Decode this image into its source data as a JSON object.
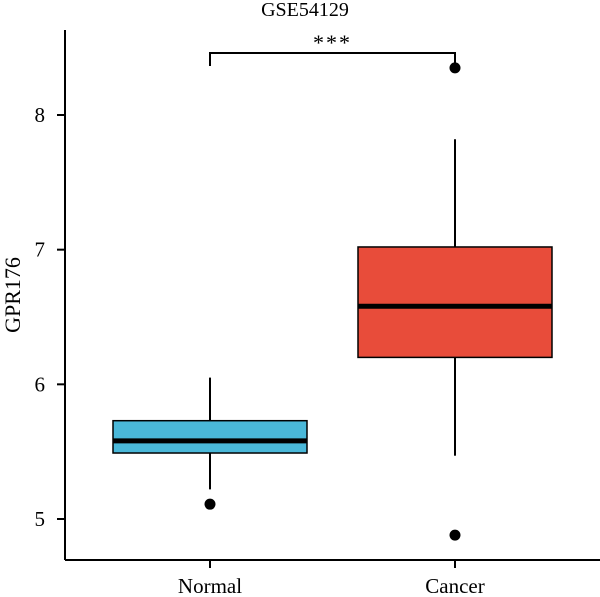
{
  "chart_data": {
    "type": "boxplot",
    "title": "GSE54129",
    "ylabel": "GPR176",
    "xlabel": "",
    "categories": [
      "Normal",
      "Cancer"
    ],
    "ylim": [
      4.6,
      8.7
    ],
    "yticks": [
      5,
      6,
      7,
      8
    ],
    "grid": false,
    "boxes": [
      {
        "category": "Normal",
        "whisker_low": 5.22,
        "q1": 5.49,
        "median": 5.58,
        "q3": 5.73,
        "whisker_high": 6.05,
        "outliers": [
          5.11
        ],
        "color": "#4ab8d9"
      },
      {
        "category": "Cancer",
        "whisker_low": 5.47,
        "q1": 6.2,
        "median": 6.58,
        "q3": 7.02,
        "whisker_high": 7.82,
        "outliers": [
          8.35,
          4.88
        ],
        "color": "#e84c3a"
      }
    ],
    "significance": {
      "label": "***",
      "between": [
        "Normal",
        "Cancer"
      ],
      "y": 8.45
    }
  }
}
